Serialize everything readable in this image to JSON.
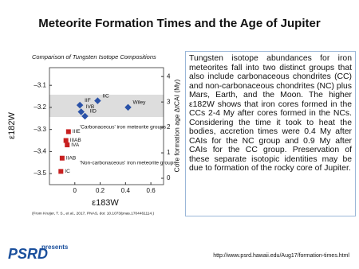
{
  "header": {
    "title": "Meteorite Formation Times and the Age of Jupiter"
  },
  "chart_data": {
    "type": "scatter",
    "title": "Comparison of Tungsten Isotope Compositions",
    "x_label": "ε183W",
    "y_label": "ε182W",
    "y2_label": "Core formation age ΔtCAI (My)",
    "source": "(From Kruijer, T. S., et al., 2017, PNAS, doi: 10.1073/pnas.1704461114.)",
    "xlim": [
      -0.2,
      0.7
    ],
    "xticks": [
      0,
      0.2,
      0.4,
      0.6
    ],
    "ylim": [
      -3.55,
      -3.02
    ],
    "yticks": [
      {
        "value": -3.1,
        "label": "–3.1"
      },
      {
        "value": -3.2,
        "label": "–3.2"
      },
      {
        "value": -3.3,
        "label": "–3.3"
      },
      {
        "value": -3.4,
        "label": "–3.4"
      },
      {
        "value": -3.5,
        "label": "–3.5"
      }
    ],
    "y2lim": [
      -0.25,
      4.35
    ],
    "y2ticks": [
      0,
      1,
      2,
      3,
      4
    ],
    "series": [
      {
        "name": "'Carbonaceous' iron meteorite groups",
        "color": "#2a52a8",
        "labels": [
          "IIF",
          "IVB",
          "IIC",
          "IID",
          "Wiley"
        ],
        "x": [
          0.04,
          0.05,
          0.18,
          0.08,
          0.42
        ],
        "values": [
          -3.19,
          -3.22,
          -3.17,
          -3.24,
          -3.2
        ]
      },
      {
        "name": "'Non-carbonaceous' iron meteorite groups",
        "color": "#c82020",
        "labels": [
          "IIIE",
          "IIIAB",
          "IVA",
          "IIAB",
          "IC"
        ],
        "x": [
          -0.05,
          -0.07,
          -0.06,
          -0.1,
          -0.11
        ],
        "values": [
          -3.31,
          -3.35,
          -3.37,
          -3.43,
          -3.49
        ]
      }
    ]
  },
  "body": {
    "text": "Tungsten isotope abundances for iron meteorites fall into two distinct groups that also include carbonaceous chondrites (CC) and non-carbonaceous chondrites (NC) plus Mars, Earth, and the Moon. The higher ε182W shows that iron cores formed in the CCs 2-4 My after cores formed in the NCs. Considering the time it took to heat the bodies, accretion times were 0.4 My after CAIs for the NC group and 0.9 My after CAIs for the CC group. Preservation of these separate isotopic identities may be due to formation of the rocky core of Jupiter."
  },
  "footer": {
    "logo": "PSRD",
    "logo_sub": "presents",
    "url": "http://www.psrd.hawaii.edu/Aug17/formation-times.html"
  }
}
